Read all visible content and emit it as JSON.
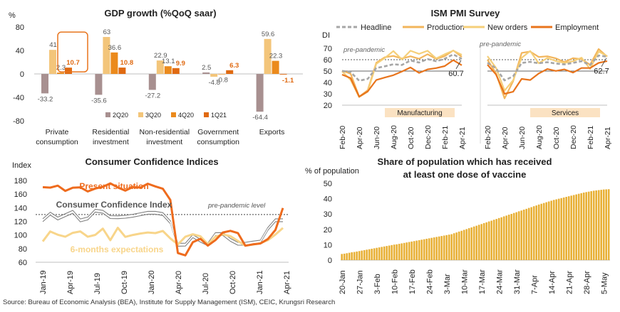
{
  "source": "Source: Bureau of Economic Analysis (BEA), Institute for Supply Management (ISM), CEIC, Krungsri Research",
  "colors": {
    "q2": "#a89090",
    "q3": "#f3c57a",
    "q4": "#eb8a1c",
    "q1": "#e06a12",
    "headline": "#a6a6a6",
    "production": "#f2b55b",
    "neworders": "#f5cf79",
    "employment": "#e8741c",
    "present": "#ee6b1d",
    "cci": "#595959",
    "sixm": "#f8d58a",
    "vaccine": "#e8b036"
  },
  "chart_data": [
    {
      "type": "bar",
      "title": "GDP growth (%QoQ saar)",
      "ylabel": "%",
      "ylim": [
        -80,
        80
      ],
      "yticks": [
        "80",
        "40",
        "0",
        "-40",
        "-80"
      ],
      "categories": [
        "Private consumption",
        "Residential investment",
        "Non-residential investment",
        "Government consumption",
        "Exports"
      ],
      "category_lines": [
        [
          "Private",
          "consumption"
        ],
        [
          "Residential",
          "investment"
        ],
        [
          "Non-residential",
          "investment"
        ],
        [
          "Government",
          "consumption"
        ],
        [
          "Exports",
          ""
        ]
      ],
      "series": [
        {
          "name": "2Q20",
          "values": [
            -33.2,
            -35.6,
            -27.2,
            2.5,
            -64.4
          ],
          "labels": [
            "-33.2",
            "-35.6",
            "-27.2",
            "2.5",
            "-64.4"
          ]
        },
        {
          "name": "3Q20",
          "values": [
            41,
            63,
            22.9,
            -4.8,
            59.6
          ],
          "labels": [
            "41",
            "63",
            "22.9",
            "-4.8",
            "59.6"
          ]
        },
        {
          "name": "4Q20",
          "values": [
            2.3,
            36.6,
            13.1,
            -0.8,
            22.3
          ],
          "labels": [
            "2.3",
            "36.6",
            "13.1",
            "-0.8",
            "22.3"
          ]
        },
        {
          "name": "1Q21",
          "values": [
            10.7,
            10.8,
            9.9,
            6.3,
            -1.1
          ],
          "labels": [
            "10.7",
            "10.8",
            "9.9",
            "6.3",
            "-1.1"
          ]
        }
      ]
    },
    {
      "type": "line",
      "title": "ISM PMI Survey",
      "ylabel": "DI",
      "panels": [
        "Manufacturing",
        "Services"
      ],
      "ylim": [
        20,
        70
      ],
      "yticks": [
        "70",
        "60",
        "50",
        "40",
        "30",
        "20"
      ],
      "x_ticks": [
        "Feb-20",
        "Apr-20",
        "Jun-20",
        "Aug-20",
        "Oct-20",
        "Dec-20",
        "Feb-21",
        "Apr-21"
      ],
      "x": [
        "Feb-20",
        "Mar-20",
        "Apr-20",
        "May-20",
        "Jun-20",
        "Jul-20",
        "Aug-20",
        "Sep-20",
        "Oct-20",
        "Nov-20",
        "Dec-20",
        "Jan-21",
        "Feb-21",
        "Mar-21",
        "Apr-21"
      ],
      "reference_label": "pre-pandemic",
      "reference_value": 60,
      "series_names": [
        "Headline",
        "Production",
        "New orders",
        "Employment"
      ],
      "manufacturing": {
        "headline": [
          50.1,
          49.1,
          41.5,
          43.1,
          52.6,
          54.2,
          56.0,
          55.4,
          59.3,
          57.5,
          60.5,
          58.7,
          60.8,
          64.7,
          60.7
        ],
        "production": [
          50.3,
          47.7,
          27.5,
          33.2,
          57.3,
          62.1,
          63.3,
          61.0,
          63.0,
          60.8,
          64.8,
          60.7,
          63.2,
          68.1,
          62.5
        ],
        "neworders": [
          49.8,
          42.2,
          27.1,
          31.8,
          56.4,
          61.5,
          67.6,
          60.2,
          67.9,
          65.1,
          67.9,
          61.1,
          64.8,
          68.0,
          64.3
        ],
        "employment": [
          46.9,
          43.8,
          27.5,
          32.1,
          42.1,
          44.3,
          46.4,
          49.6,
          53.2,
          48.4,
          51.5,
          52.6,
          54.4,
          59.6,
          55.1
        ],
        "end_label": "60.7"
      },
      "services": {
        "headline": [
          57.3,
          52.5,
          41.8,
          45.4,
          57.1,
          58.1,
          56.9,
          57.8,
          56.6,
          55.9,
          57.2,
          58.7,
          55.3,
          63.7,
          62.7
        ],
        "production": [
          60.0,
          48.0,
          26.0,
          41.0,
          66.0,
          67.2,
          62.4,
          63.0,
          61.2,
          58.0,
          61.3,
          60.5,
          55.5,
          69.4,
          62.7
        ],
        "neworders": [
          63.1,
          52.9,
          32.9,
          41.9,
          61.6,
          67.7,
          56.8,
          61.5,
          58.8,
          57.2,
          58.6,
          61.8,
          51.9,
          67.2,
          63.2
        ],
        "employment": [
          55.6,
          47.0,
          30.0,
          31.8,
          43.1,
          42.1,
          47.9,
          51.8,
          50.1,
          51.5,
          48.7,
          52.7,
          52.7,
          57.2,
          58.8
        ],
        "end_label": "62.7"
      }
    },
    {
      "type": "line",
      "title": "Consumer Confidence Indices",
      "ylabel": "Index",
      "ylim": [
        60,
        190
      ],
      "yticks": [
        "180",
        "160",
        "140",
        "120",
        "100",
        "80",
        "60"
      ],
      "x_ticks": [
        "Jan-19",
        "Apr-19",
        "Jul-19",
        "Oct-19",
        "Jan-20",
        "Apr-20",
        "Jul-20",
        "Oct-20",
        "Jan-21",
        "Apr-21"
      ],
      "reference_label": "pre-pandemic level",
      "reference_value": 130,
      "series": [
        {
          "name": "Present situation",
          "values": [
            170.2,
            169.6,
            172.5,
            164.8,
            169.5,
            170.0,
            163.9,
            168.2,
            170.7,
            175.8,
            169.9,
            165.1,
            170.5,
            169.6,
            175.3,
            171.3,
            167.9,
            151.5,
            73.5,
            70.1,
            89.4,
            94.4,
            84.4,
            92.5,
            103.7,
            106.1,
            102.9,
            84.3,
            86.3,
            87.6,
            94.1,
            107.5,
            139.6
          ]
        },
        {
          "name": "Consumer Confidence Index",
          "values": [
            121.7,
            131.4,
            124.2,
            129.2,
            134.1,
            121.5,
            124.3,
            135.8,
            134.2,
            126.3,
            126.1,
            126.8,
            128.2,
            130.4,
            132.6,
            132.6,
            130.7,
            118.8,
            85.7,
            85.9,
            98.3,
            91.7,
            86.3,
            101.3,
            101.4,
            92.9,
            87.1,
            87.1,
            88.9,
            90.4,
            109.0,
            121.7,
            121.7
          ]
        },
        {
          "name": "6-months expectations",
          "values": [
            90.6,
            105.2,
            100.4,
            97.5,
            103.2,
            105.3,
            97.5,
            100.2,
            109.4,
            92.3,
            110.6,
            97.3,
            100.1,
            102.2,
            103.7,
            102.8,
            105.9,
            95.1,
            86.1,
            97.5,
            101.1,
            98.2,
            86.6,
            97.6,
            100.9,
            98.3,
            91.3,
            84.3,
            85.9,
            88.0,
            92.5,
            100.7,
            110.3
          ]
        }
      ]
    },
    {
      "type": "bar",
      "title": "Share of population which has received at least one dose of vaccine",
      "title_lines": [
        "Share of population which has received",
        "at least one dose of vaccine"
      ],
      "ylabel": "% of population",
      "ylim": [
        0,
        50
      ],
      "yticks": [
        "50",
        "40",
        "30",
        "20",
        "10",
        "0"
      ],
      "x_ticks": [
        "20-Jan",
        "27-Jan",
        "3-Feb",
        "10-Feb",
        "17-Feb",
        "24-Feb",
        "3-Mar",
        "10-Mar",
        "17-Mar",
        "24-Mar",
        "31-Mar",
        "7-Apr",
        "14-Apr",
        "21-Apr",
        "28-Apr",
        "5-May"
      ],
      "start_day": "20-Jan",
      "values": [
        4.0,
        4.2,
        4.5,
        4.8,
        5.1,
        5.3,
        5.6,
        5.9,
        6.2,
        6.5,
        6.8,
        7.1,
        7.4,
        7.7,
        8.0,
        8.3,
        8.6,
        8.9,
        9.2,
        9.5,
        9.8,
        10.1,
        10.3,
        10.6,
        10.9,
        11.2,
        11.5,
        11.8,
        12.1,
        12.4,
        12.7,
        13.0,
        13.3,
        13.6,
        13.9,
        14.2,
        14.5,
        14.8,
        15.1,
        15.4,
        15.7,
        16.0,
        16.3,
        16.6,
        16.9,
        17.5,
        18.0,
        18.6,
        19.1,
        19.7,
        20.2,
        20.8,
        21.3,
        21.9,
        22.4,
        23.0,
        23.5,
        24.1,
        24.6,
        25.2,
        25.7,
        26.3,
        26.8,
        27.4,
        27.9,
        28.5,
        29.0,
        29.6,
        30.1,
        30.7,
        31.2,
        31.8,
        32.3,
        32.9,
        33.4,
        34.0,
        34.5,
        35.1,
        35.6,
        36.2,
        36.7,
        37.2,
        37.7,
        38.2,
        38.7,
        39.2,
        39.6,
        40.0,
        40.4,
        40.8,
        41.2,
        41.6,
        42.0,
        42.4,
        42.8,
        43.2,
        43.6,
        44.0,
        44.3,
        44.6,
        44.9,
        45.2,
        45.4,
        45.6,
        45.8,
        46.0,
        46.1,
        46.2
      ]
    }
  ]
}
